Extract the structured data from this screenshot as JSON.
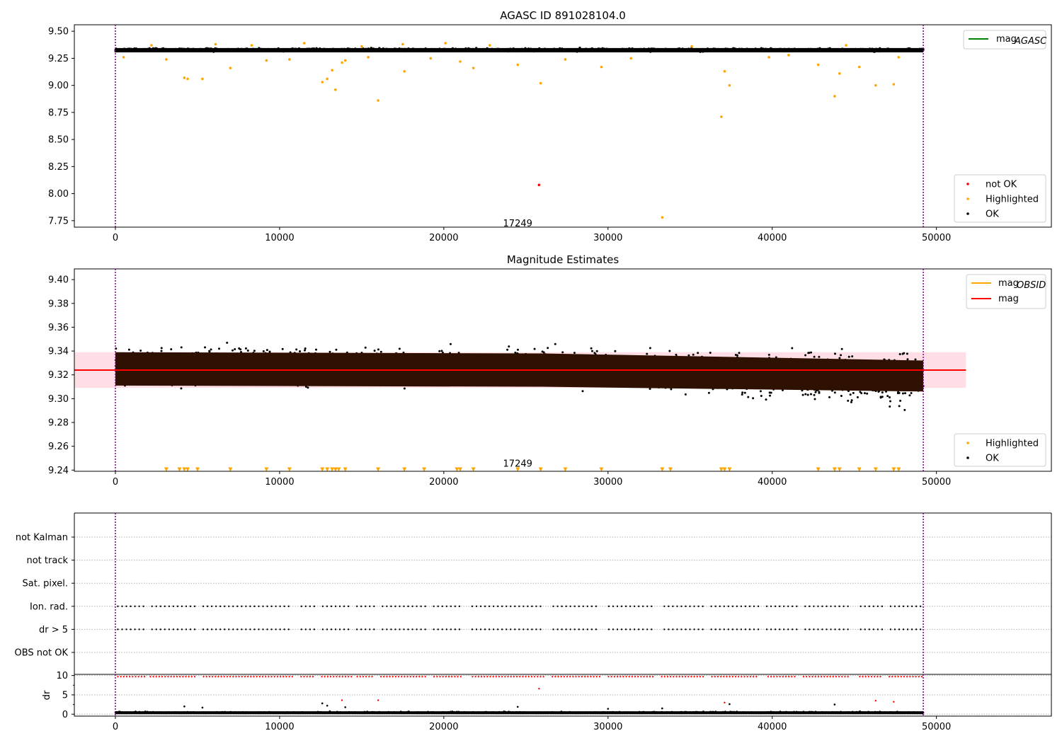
{
  "chart_data": [
    {
      "id": "panel1",
      "type": "scatter",
      "title": "AGASC ID 891028104.0",
      "xlabel": "",
      "ylabel": "",
      "xlim": [
        -2500,
        57000
      ],
      "ylim": [
        7.69,
        9.56
      ],
      "xticks": [
        0,
        10000,
        20000,
        30000,
        40000,
        50000
      ],
      "yticks": [
        7.75,
        8.0,
        8.25,
        8.5,
        8.75,
        9.0,
        9.25,
        9.5
      ],
      "ytick_labels": [
        "7.75",
        "8.00",
        "8.25",
        "8.50",
        "8.75",
        "9.00",
        "9.25",
        "9.50"
      ],
      "vlines": [
        0,
        49200
      ],
      "annotation": {
        "text": "17249",
        "x": 24500,
        "y": 7.73
      },
      "legend_upper": {
        "placement": "upper right",
        "entries": [
          {
            "label": "mag",
            "sub": "AGASC",
            "color": "#008000",
            "kind": "line"
          }
        ]
      },
      "legend_lower": {
        "placement": "lower right",
        "entries": [
          {
            "label": "not OK",
            "color": "#ff0000",
            "kind": "dot"
          },
          {
            "label": "Highlighted",
            "color": "#ffa500",
            "kind": "dot"
          },
          {
            "label": "OK",
            "color": "#000000",
            "kind": "dot"
          }
        ]
      },
      "band": {
        "x_range": [
          0,
          49200
        ],
        "center": 9.33,
        "spread": 0.022
      },
      "series": [
        {
          "name": "not OK",
          "color": "#ff0000",
          "points": [
            [
              25800,
              8.08
            ]
          ]
        },
        {
          "name": "Highlighted",
          "color": "#ffa500",
          "points": [
            [
              4200,
              9.07
            ],
            [
              4400,
              9.06
            ],
            [
              5300,
              9.06
            ],
            [
              7000,
              9.16
            ],
            [
              9200,
              9.23
            ],
            [
              12600,
              9.03
            ],
            [
              12900,
              9.06
            ],
            [
              13200,
              9.14
            ],
            [
              13400,
              8.96
            ],
            [
              13800,
              9.21
            ],
            [
              14000,
              9.23
            ],
            [
              15400,
              9.26
            ],
            [
              16000,
              8.86
            ],
            [
              17600,
              9.13
            ],
            [
              21000,
              9.22
            ],
            [
              21800,
              9.16
            ],
            [
              24500,
              9.19
            ],
            [
              25900,
              9.02
            ],
            [
              29600,
              9.17
            ],
            [
              33300,
              7.78
            ],
            [
              36900,
              8.71
            ],
            [
              37100,
              9.13
            ],
            [
              37400,
              9.0
            ],
            [
              41000,
              9.28
            ],
            [
              42800,
              9.19
            ],
            [
              43800,
              8.9
            ],
            [
              44100,
              9.11
            ],
            [
              45300,
              9.17
            ],
            [
              46300,
              9.0
            ],
            [
              47400,
              9.01
            ],
            [
              500,
              9.26
            ],
            [
              2200,
              9.37
            ],
            [
              3100,
              9.24
            ],
            [
              6100,
              9.38
            ],
            [
              8300,
              9.37
            ],
            [
              10600,
              9.24
            ],
            [
              11500,
              9.39
            ],
            [
              15000,
              9.36
            ],
            [
              17500,
              9.38
            ],
            [
              19200,
              9.25
            ],
            [
              20100,
              9.39
            ],
            [
              22800,
              9.37
            ],
            [
              27400,
              9.24
            ],
            [
              31400,
              9.25
            ],
            [
              35100,
              9.36
            ],
            [
              39800,
              9.26
            ],
            [
              44500,
              9.37
            ],
            [
              47700,
              9.26
            ]
          ]
        }
      ]
    },
    {
      "id": "panel2",
      "type": "scatter",
      "title": "Magnitude Estimates",
      "xlabel": "",
      "ylabel": "",
      "xlim": [
        -2500,
        57000
      ],
      "ylim": [
        9.239,
        9.409
      ],
      "xticks": [
        0,
        10000,
        20000,
        30000,
        40000,
        50000
      ],
      "yticks": [
        9.24,
        9.26,
        9.28,
        9.3,
        9.32,
        9.34,
        9.36,
        9.38,
        9.4
      ],
      "ytick_labels": [
        "9.24",
        "9.26",
        "9.28",
        "9.30",
        "9.32",
        "9.34",
        "9.36",
        "9.38",
        "9.40"
      ],
      "vlines": [
        0,
        49200
      ],
      "annotation": {
        "text": "17249",
        "x": 24500,
        "y": 9.243
      },
      "mag_line": {
        "value": 9.324,
        "x_range": [
          -2500,
          51800
        ],
        "color": "#ff0000"
      },
      "mag_band": {
        "low": 9.309,
        "high": 9.339,
        "x_range": [
          -2500,
          51800
        ],
        "color": "#ffc0cb"
      },
      "legend_upper": {
        "placement": "upper right",
        "entries": [
          {
            "label": "mag",
            "sub": "OBSID",
            "color": "#ffa500",
            "kind": "line"
          },
          {
            "label": "mag",
            "sub": "",
            "color": "#ff0000",
            "kind": "line"
          }
        ]
      },
      "legend_lower": {
        "placement": "lower right",
        "entries": [
          {
            "label": "Highlighted",
            "color": "#ffa500",
            "kind": "dot"
          },
          {
            "label": "OK",
            "color": "#000000",
            "kind": "dot"
          }
        ]
      },
      "dense_band": {
        "x_range": [
          0,
          49200
        ],
        "low": 9.31,
        "high": 9.338,
        "color": "#2e1100"
      },
      "outliers_low_markers": [
        3100,
        3900,
        4200,
        4400,
        5000,
        7000,
        9200,
        10600,
        12600,
        12900,
        13200,
        13400,
        13600,
        14000,
        16000,
        17600,
        18800,
        20800,
        21000,
        21800,
        24500,
        25900,
        27400,
        29600,
        33300,
        33800,
        36900,
        37100,
        37400,
        42800,
        43800,
        44100,
        45300,
        46300,
        47400,
        47700
      ]
    },
    {
      "id": "panel3",
      "type": "scatter",
      "title": "",
      "xlabel": "",
      "ylabel": "",
      "xlim": [
        -2500,
        57000
      ],
      "categories": [
        "not Kalman",
        "not track",
        "Sat. pixel.",
        "Ion. rad.",
        "dr > 5",
        "OBS not OK"
      ],
      "flagged_rows": [
        "Ion. rad.",
        "dr > 5"
      ],
      "flag_gaps": [
        [
          1800,
          2100
        ],
        [
          4900,
          5200
        ],
        [
          10800,
          11200
        ],
        [
          12200,
          12500
        ],
        [
          14400,
          14700
        ],
        [
          15800,
          16100
        ],
        [
          18900,
          19300
        ],
        [
          21200,
          21600
        ],
        [
          26100,
          26500
        ],
        [
          29500,
          29900
        ],
        [
          32900,
          33200
        ],
        [
          35800,
          36200
        ],
        [
          39200,
          39600
        ],
        [
          41500,
          41900
        ],
        [
          44700,
          45200
        ],
        [
          46700,
          47100
        ]
      ],
      "vlines": [
        0,
        49200
      ]
    },
    {
      "id": "panel4",
      "type": "scatter",
      "title": "",
      "xlabel": "",
      "ylabel": "dr",
      "xlim": [
        -2500,
        57000
      ],
      "ylim": [
        -0.5,
        10.3
      ],
      "yticks": [
        0,
        5,
        10
      ],
      "ytick_labels": [
        "0",
        "5",
        "10"
      ],
      "xticks": [
        0,
        10000,
        20000,
        30000,
        40000,
        50000
      ],
      "vlines": [
        0,
        49200
      ],
      "red_points": [
        [
          25800,
          6.6
        ],
        [
          13800,
          3.6
        ],
        [
          16000,
          3.6
        ],
        [
          37100,
          3.0
        ],
        [
          46300,
          3.5
        ],
        [
          47400,
          3.2
        ]
      ],
      "black_points": [
        [
          4200,
          2.0
        ],
        [
          5300,
          1.7
        ],
        [
          12600,
          2.8
        ],
        [
          12900,
          2.2
        ],
        [
          24500,
          1.9
        ],
        [
          33300,
          1.5
        ],
        [
          37400,
          2.6
        ],
        [
          43800,
          2.5
        ],
        [
          30000,
          1.4
        ],
        [
          14000,
          1.8
        ]
      ]
    }
  ]
}
